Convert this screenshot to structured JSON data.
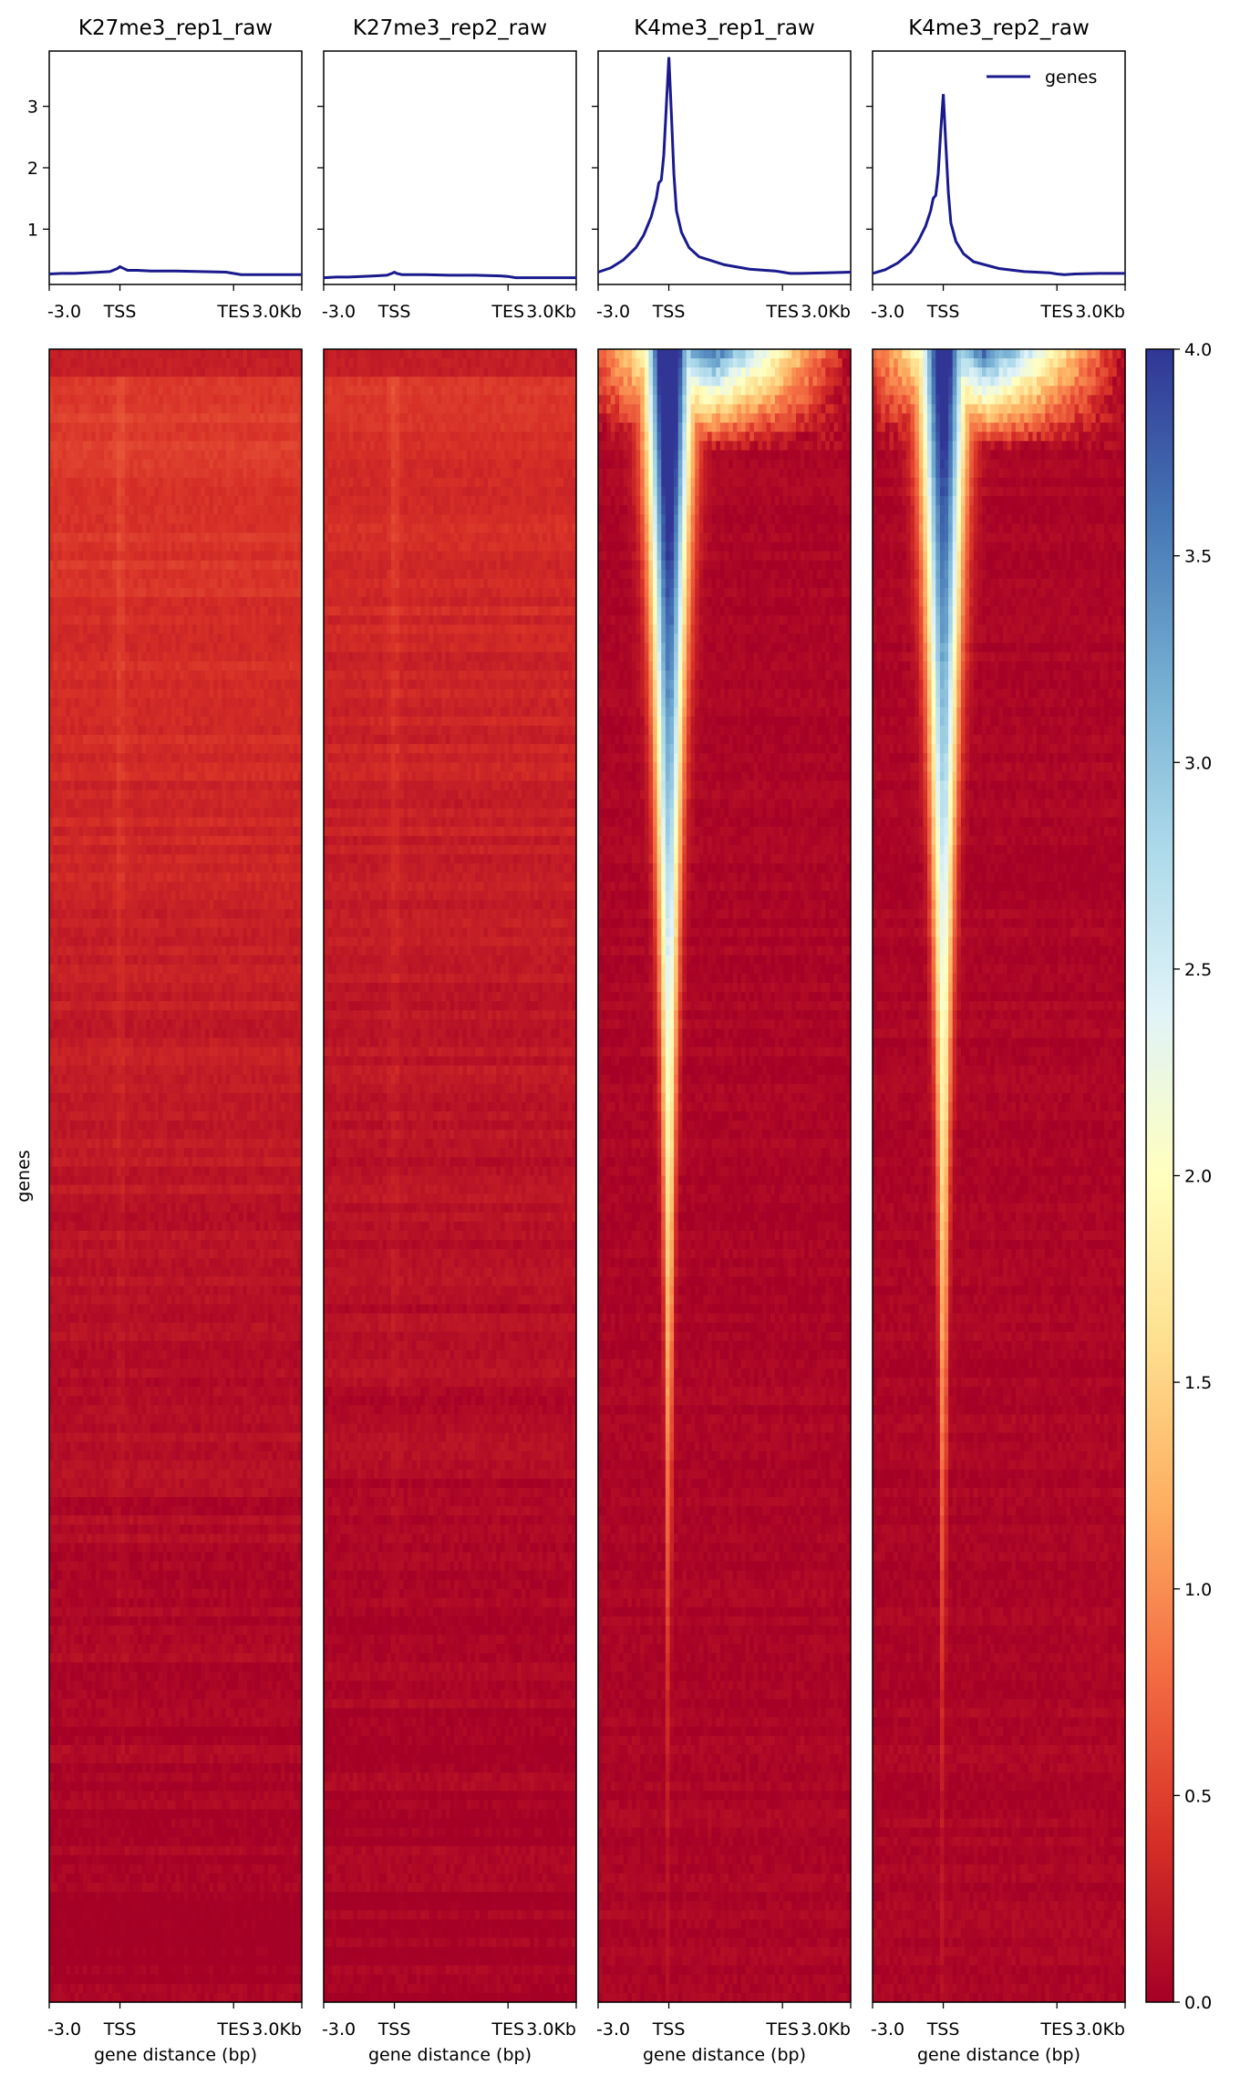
{
  "chart_data": {
    "type": "heatmap",
    "description_free": true,
    "legend": {
      "placement": "top-right",
      "label": "genes"
    },
    "line_color": "#1a1a8c",
    "colormap": [
      "#a50026",
      "#d73027",
      "#f46d43",
      "#fdae61",
      "#fee090",
      "#ffffbf",
      "#e0f3f8",
      "#abd9e9",
      "#74add1",
      "#4575b4",
      "#313695"
    ],
    "colorbar": {
      "range": [
        0,
        4.0
      ],
      "ticks": [
        "0.0",
        "0.5",
        "1.0",
        "1.5",
        "2.0",
        "2.5",
        "3.0",
        "3.5",
        "4.0"
      ]
    },
    "profile_y_ticks": [
      "1",
      "2",
      "3"
    ],
    "profile_ylim": [
      0.1,
      3.9
    ],
    "x_ticks": [
      "-3.0",
      "TSS",
      "TES",
      "3.0Kb"
    ],
    "x_tick_positions": [
      0,
      0.28,
      0.73,
      1.0
    ],
    "x_label": "gene distance (bp)",
    "y_label": "genes",
    "panels": [
      {
        "title": "K27me3_rep1_raw",
        "profile": {
          "x": [
            0,
            0.05,
            0.1,
            0.15,
            0.2,
            0.24,
            0.27,
            0.28,
            0.29,
            0.31,
            0.35,
            0.4,
            0.5,
            0.6,
            0.7,
            0.73,
            0.76,
            0.8,
            0.9,
            1.0
          ],
          "y": [
            0.27,
            0.28,
            0.28,
            0.29,
            0.3,
            0.31,
            0.36,
            0.39,
            0.37,
            0.33,
            0.33,
            0.32,
            0.32,
            0.31,
            0.3,
            0.28,
            0.26,
            0.26,
            0.26,
            0.26
          ]
        },
        "heatmap_kind": "broad",
        "base_level": 0.5
      },
      {
        "title": "K27me3_rep2_raw",
        "profile": {
          "x": [
            0,
            0.05,
            0.1,
            0.15,
            0.2,
            0.25,
            0.27,
            0.28,
            0.29,
            0.31,
            0.35,
            0.4,
            0.5,
            0.6,
            0.7,
            0.73,
            0.76,
            0.8,
            0.9,
            1.0
          ],
          "y": [
            0.21,
            0.22,
            0.22,
            0.23,
            0.24,
            0.25,
            0.28,
            0.3,
            0.28,
            0.26,
            0.26,
            0.26,
            0.25,
            0.25,
            0.24,
            0.23,
            0.21,
            0.21,
            0.21,
            0.21
          ]
        },
        "heatmap_kind": "broad",
        "base_level": 0.42
      },
      {
        "title": "K4me3_rep1_raw",
        "profile": {
          "x": [
            0,
            0.05,
            0.1,
            0.15,
            0.18,
            0.21,
            0.23,
            0.24,
            0.25,
            0.26,
            0.27,
            0.28,
            0.29,
            0.3,
            0.31,
            0.33,
            0.36,
            0.4,
            0.5,
            0.6,
            0.7,
            0.73,
            0.76,
            0.8,
            0.9,
            1.0
          ],
          "y": [
            0.3,
            0.37,
            0.5,
            0.7,
            0.9,
            1.2,
            1.5,
            1.75,
            1.8,
            2.2,
            3.0,
            3.8,
            2.9,
            1.9,
            1.3,
            0.95,
            0.7,
            0.55,
            0.42,
            0.35,
            0.32,
            0.3,
            0.28,
            0.28,
            0.29,
            0.3
          ]
        },
        "heatmap_kind": "sharp",
        "peak_strength": 1.0
      },
      {
        "title": "K4me3_rep2_raw",
        "profile": {
          "x": [
            0,
            0.05,
            0.1,
            0.15,
            0.18,
            0.21,
            0.23,
            0.24,
            0.25,
            0.26,
            0.27,
            0.28,
            0.29,
            0.3,
            0.31,
            0.33,
            0.36,
            0.4,
            0.5,
            0.6,
            0.7,
            0.73,
            0.76,
            0.8,
            0.9,
            1.0
          ],
          "y": [
            0.28,
            0.34,
            0.45,
            0.62,
            0.8,
            1.05,
            1.3,
            1.5,
            1.55,
            1.9,
            2.6,
            3.2,
            2.4,
            1.6,
            1.1,
            0.8,
            0.6,
            0.47,
            0.36,
            0.31,
            0.29,
            0.27,
            0.26,
            0.27,
            0.28,
            0.28
          ]
        },
        "heatmap_kind": "sharp",
        "peak_strength": 0.9
      }
    ]
  }
}
